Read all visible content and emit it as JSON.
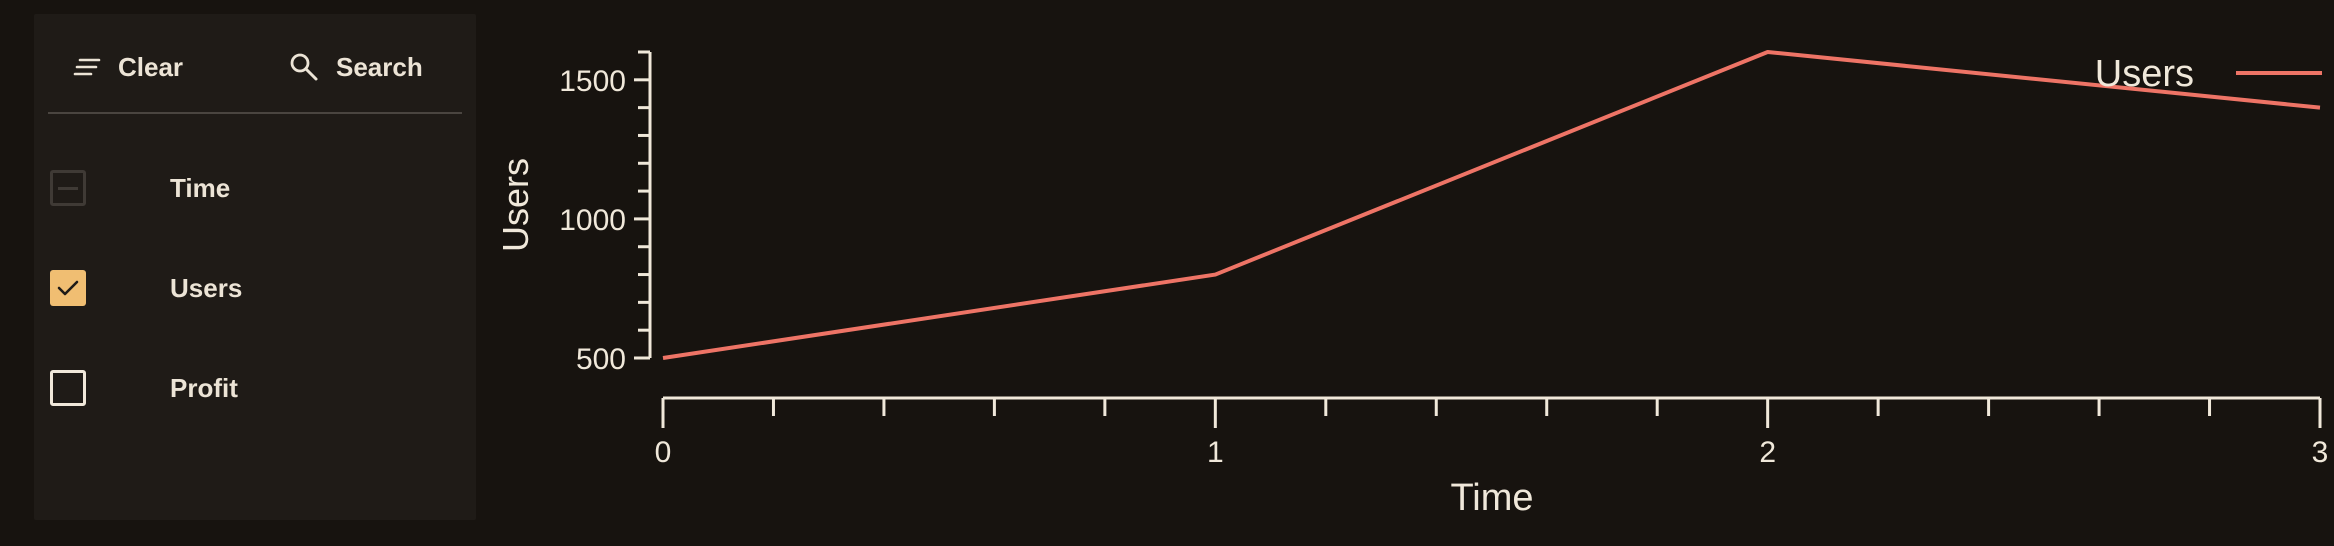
{
  "toolbar": {
    "clear_label": "Clear",
    "search_label": "Search",
    "clear_icon": "sort-lines-icon",
    "search_icon": "magnifier-icon"
  },
  "columns": [
    {
      "label": "Time",
      "state": "indeterminate-disabled"
    },
    {
      "label": "Users",
      "state": "checked"
    },
    {
      "label": "Profit",
      "state": "unchecked"
    }
  ],
  "colors": {
    "background": "#17130f",
    "panel": "#1f1b17",
    "accent": "#f0be72",
    "series": "#ee7466",
    "axis": "#f0e8da"
  },
  "chart_data": {
    "type": "line",
    "xlabel": "Time",
    "ylabel": "Users",
    "x": [
      0,
      1,
      2,
      3
    ],
    "xlim": [
      0,
      3
    ],
    "ylim": [
      500,
      1600
    ],
    "x_ticks": [
      "0",
      "1",
      "2",
      "3"
    ],
    "y_ticks": [
      "500",
      "1000",
      "1500"
    ],
    "series": [
      {
        "name": "Users",
        "x": [
          0,
          1,
          2,
          3
        ],
        "values": [
          500,
          800,
          1600,
          1400
        ]
      }
    ],
    "legend": "top-right",
    "grid": false
  }
}
